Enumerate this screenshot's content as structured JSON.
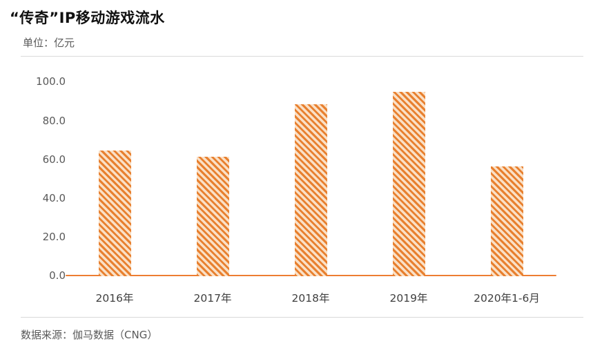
{
  "page": {
    "title": "“传奇”IP移动游戏流水",
    "unit_label": "单位：亿元",
    "source": "数据来源：伽马数据（CNG）"
  },
  "colors": {
    "bar_stripe": "#E8802F",
    "bar_fill_light": "#FAE0C6",
    "axis_line": "#ED7D31",
    "divider": "#D9D9D9",
    "axis_text": "#595959",
    "category_text": "#404040",
    "title_text": "#111111"
  },
  "chart_data": {
    "type": "bar",
    "title": "“传奇”IP移动游戏流水",
    "unit": "亿元",
    "categories": [
      "2016年",
      "2017年",
      "2018年",
      "2019年",
      "2020年1-6月"
    ],
    "values": [
      65.0,
      61.8,
      88.6,
      95.3,
      56.5
    ],
    "ylim": [
      0,
      100
    ],
    "yticks": [
      0,
      20,
      40,
      60,
      80,
      100
    ],
    "ytick_labels": [
      "0.0",
      "20.0",
      "40.0",
      "60.0",
      "80.0",
      "100.0"
    ],
    "xlabel": "",
    "ylabel": "",
    "grid": false,
    "legend": "none",
    "bar_style": "diagonal-hatch"
  }
}
